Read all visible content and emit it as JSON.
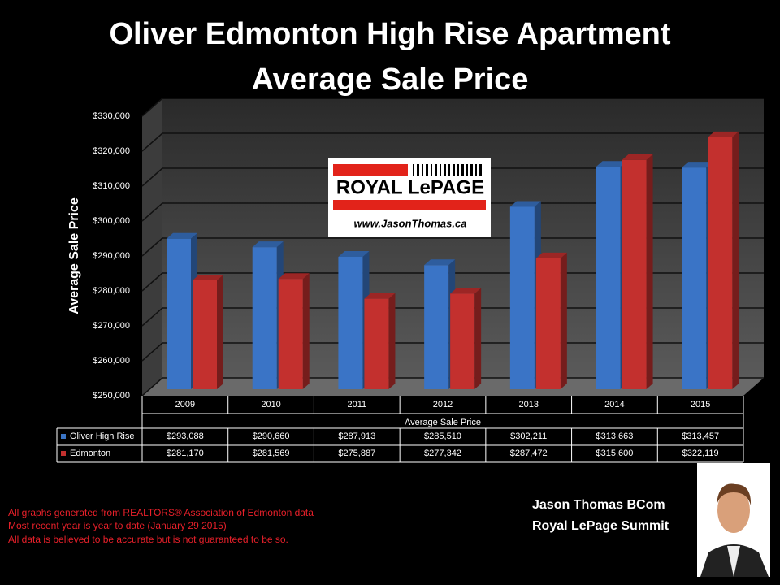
{
  "chart_data": {
    "type": "bar",
    "title": "Oliver Edmonton High Rise Apartment Average Sale Price",
    "y_label": "Average Sale Price",
    "x_label": "Average Sale Price",
    "categories": [
      "2009",
      "2010",
      "2011",
      "2012",
      "2013",
      "2014",
      "2015"
    ],
    "series": [
      {
        "name": "Oliver High Rise",
        "color": "#3a74c6",
        "values": [
          293088,
          290660,
          287913,
          285510,
          302211,
          313663,
          313457
        ],
        "value_labels": [
          "$293,088",
          "$290,660",
          "$287,913",
          "$285,510",
          "$302,211",
          "$313,663",
          "$313,457"
        ]
      },
      {
        "name": "Edmonton",
        "color": "#c3302e",
        "values": [
          281170,
          281569,
          275887,
          277342,
          287472,
          315600,
          322119
        ],
        "value_labels": [
          "$281,170",
          "$281,569",
          "$275,887",
          "$277,342",
          "$287,472",
          "$315,600",
          "$322,119"
        ]
      }
    ],
    "ylim": [
      250000,
      330000
    ],
    "yticks": [
      {
        "value": 250000,
        "label": "$250,000"
      },
      {
        "value": 260000,
        "label": "$260,000"
      },
      {
        "value": 270000,
        "label": "$270,000"
      },
      {
        "value": 280000,
        "label": "$280,000"
      },
      {
        "value": 290000,
        "label": "$290,000"
      },
      {
        "value": 300000,
        "label": "$300,000"
      },
      {
        "value": 310000,
        "label": "$310,000"
      },
      {
        "value": 320000,
        "label": "$320,000"
      },
      {
        "value": 330000,
        "label": "$330,000"
      }
    ],
    "grid": true
  },
  "logo": {
    "brand": "ROYAL LePAGE",
    "website": "www.JasonThomas.ca"
  },
  "footnotes": [
    "All graphs generated from REALTORS® Association of Edmonton data",
    "Most recent year is year to date (January 29 2015)",
    "All data is believed to be accurate but is not guaranteed to be so."
  ],
  "agent": {
    "name": "Jason Thomas BCom",
    "company": "Royal LePage Summit"
  }
}
